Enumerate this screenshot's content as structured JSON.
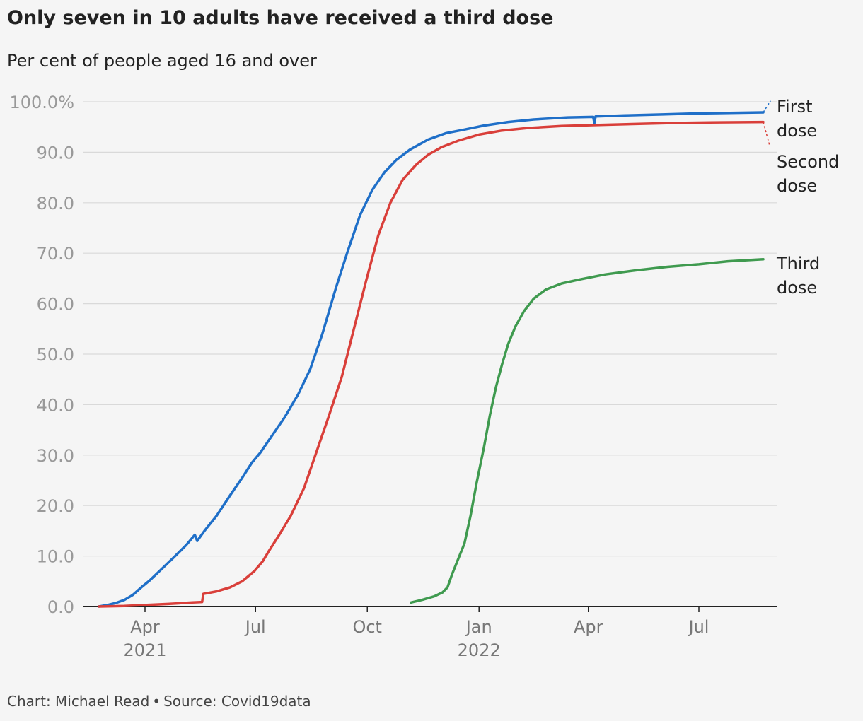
{
  "header": {
    "title": "Only seven in 10 adults have received a third dose",
    "subtitle": "Per cent of people aged 16 and over"
  },
  "footer": {
    "credit": "Chart: Michael Read",
    "separator": "•",
    "source": "Source: Covid19data"
  },
  "chart_data": {
    "type": "line",
    "title": "Only seven in 10 adults have received a third dose",
    "subtitle": "Per cent of people aged 16 and over",
    "xlabel": "",
    "ylabel": "",
    "ylim": [
      0,
      100
    ],
    "yticks": [
      {
        "value": 0,
        "label": "0.0"
      },
      {
        "value": 10,
        "label": "10.0"
      },
      {
        "value": 20,
        "label": "20.0"
      },
      {
        "value": 30,
        "label": "30.0"
      },
      {
        "value": 40,
        "label": "40.0"
      },
      {
        "value": 50,
        "label": "50.0"
      },
      {
        "value": 60,
        "label": "60.0"
      },
      {
        "value": 70,
        "label": "70.0"
      },
      {
        "value": 80,
        "label": "80.0"
      },
      {
        "value": 90,
        "label": "90.0"
      },
      {
        "value": 100,
        "label": "100.0%"
      }
    ],
    "xlim": [
      "2021-02-22",
      "2022-08-31"
    ],
    "xticks": [
      {
        "date": "2021-04-01",
        "label": "Apr",
        "year": "2021"
      },
      {
        "date": "2021-07-01",
        "label": "Jul",
        "year": ""
      },
      {
        "date": "2021-10-01",
        "label": "Oct",
        "year": ""
      },
      {
        "date": "2022-01-01",
        "label": "Jan",
        "year": "2022"
      },
      {
        "date": "2022-04-01",
        "label": "Apr",
        "year": ""
      },
      {
        "date": "2022-07-01",
        "label": "Jul",
        "year": ""
      }
    ],
    "grid": true,
    "legend": "direct labels at right end of lines",
    "series": [
      {
        "name": "First dose",
        "label_lines": [
          "First",
          "dose"
        ],
        "color": "#1f6fc8",
        "points": [
          [
            "2021-02-22",
            0
          ],
          [
            "2021-03-01",
            0.3
          ],
          [
            "2021-03-08",
            0.7
          ],
          [
            "2021-03-15",
            1.3
          ],
          [
            "2021-03-22",
            2.3
          ],
          [
            "2021-03-29",
            3.8
          ],
          [
            "2021-04-05",
            5.2
          ],
          [
            "2021-04-15",
            7.5
          ],
          [
            "2021-04-25",
            9.8
          ],
          [
            "2021-05-05",
            12.2
          ],
          [
            "2021-05-12",
            14.2
          ],
          [
            "2021-05-14",
            13.0
          ],
          [
            "2021-05-20",
            15.0
          ],
          [
            "2021-05-30",
            18.0
          ],
          [
            "2021-06-10",
            22.0
          ],
          [
            "2021-06-20",
            25.5
          ],
          [
            "2021-06-28",
            28.5
          ],
          [
            "2021-07-05",
            30.5
          ],
          [
            "2021-07-15",
            34.0
          ],
          [
            "2021-07-25",
            37.5
          ],
          [
            "2021-08-05",
            42.0
          ],
          [
            "2021-08-15",
            47.0
          ],
          [
            "2021-08-25",
            54.0
          ],
          [
            "2021-09-05",
            63.0
          ],
          [
            "2021-09-15",
            70.5
          ],
          [
            "2021-09-25",
            77.5
          ],
          [
            "2021-10-05",
            82.5
          ],
          [
            "2021-10-15",
            86.0
          ],
          [
            "2021-10-25",
            88.5
          ],
          [
            "2021-11-05",
            90.5
          ],
          [
            "2021-11-20",
            92.5
          ],
          [
            "2021-12-05",
            93.8
          ],
          [
            "2021-12-20",
            94.5
          ],
          [
            "2022-01-05",
            95.3
          ],
          [
            "2022-01-25",
            96.0
          ],
          [
            "2022-02-15",
            96.5
          ],
          [
            "2022-03-15",
            96.9
          ],
          [
            "2022-04-05",
            97.0
          ],
          [
            "2022-04-06",
            95.8
          ],
          [
            "2022-04-07",
            97.1
          ],
          [
            "2022-05-01",
            97.3
          ],
          [
            "2022-06-01",
            97.5
          ],
          [
            "2022-07-01",
            97.7
          ],
          [
            "2022-08-23",
            97.9
          ]
        ],
        "projection": [
          [
            "2022-08-23",
            97.9
          ],
          [
            "2022-08-29",
            100.2
          ]
        ]
      },
      {
        "name": "Second dose",
        "label_lines": [
          "Second",
          "dose"
        ],
        "color": "#d93f3a",
        "points": [
          [
            "2021-02-22",
            0
          ],
          [
            "2021-03-15",
            0.1
          ],
          [
            "2021-04-01",
            0.3
          ],
          [
            "2021-04-20",
            0.5
          ],
          [
            "2021-05-10",
            0.8
          ],
          [
            "2021-05-18",
            0.9
          ],
          [
            "2021-05-19",
            2.5
          ],
          [
            "2021-05-30",
            3.0
          ],
          [
            "2021-06-10",
            3.8
          ],
          [
            "2021-06-20",
            5.0
          ],
          [
            "2021-06-30",
            7.0
          ],
          [
            "2021-07-07",
            9.0
          ],
          [
            "2021-07-12",
            11.0
          ],
          [
            "2021-07-20",
            14.0
          ],
          [
            "2021-07-30",
            18.0
          ],
          [
            "2021-08-10",
            23.5
          ],
          [
            "2021-08-20",
            30.5
          ],
          [
            "2021-08-30",
            37.5
          ],
          [
            "2021-09-10",
            45.5
          ],
          [
            "2021-09-20",
            55.0
          ],
          [
            "2021-09-30",
            64.5
          ],
          [
            "2021-10-10",
            73.5
          ],
          [
            "2021-10-20",
            80.0
          ],
          [
            "2021-10-30",
            84.5
          ],
          [
            "2021-11-10",
            87.5
          ],
          [
            "2021-11-20",
            89.5
          ],
          [
            "2021-12-01",
            91.0
          ],
          [
            "2021-12-15",
            92.3
          ],
          [
            "2022-01-01",
            93.5
          ],
          [
            "2022-01-20",
            94.3
          ],
          [
            "2022-02-10",
            94.8
          ],
          [
            "2022-03-10",
            95.2
          ],
          [
            "2022-04-10",
            95.4
          ],
          [
            "2022-05-10",
            95.6
          ],
          [
            "2022-06-10",
            95.8
          ],
          [
            "2022-07-10",
            95.9
          ],
          [
            "2022-08-23",
            96.0
          ]
        ],
        "projection": [
          [
            "2022-08-23",
            96.0
          ],
          [
            "2022-08-28",
            91.5
          ]
        ]
      },
      {
        "name": "Third dose",
        "label_lines": [
          "Third",
          "dose"
        ],
        "color": "#3f9a4f",
        "points": [
          [
            "2021-11-06",
            0.8
          ],
          [
            "2021-11-15",
            1.3
          ],
          [
            "2021-11-25",
            2.0
          ],
          [
            "2021-12-02",
            2.8
          ],
          [
            "2021-12-06",
            3.8
          ],
          [
            "2021-12-10",
            6.5
          ],
          [
            "2021-12-15",
            9.5
          ],
          [
            "2021-12-20",
            12.5
          ],
          [
            "2021-12-25",
            18.0
          ],
          [
            "2021-12-30",
            24.5
          ],
          [
            "2022-01-05",
            31.5
          ],
          [
            "2022-01-10",
            38.0
          ],
          [
            "2022-01-15",
            43.5
          ],
          [
            "2022-01-20",
            48.0
          ],
          [
            "2022-01-25",
            52.0
          ],
          [
            "2022-01-31",
            55.5
          ],
          [
            "2022-02-07",
            58.5
          ],
          [
            "2022-02-15",
            61.0
          ],
          [
            "2022-02-25",
            62.8
          ],
          [
            "2022-03-10",
            64.0
          ],
          [
            "2022-03-25",
            64.8
          ],
          [
            "2022-04-15",
            65.8
          ],
          [
            "2022-05-10",
            66.6
          ],
          [
            "2022-06-05",
            67.3
          ],
          [
            "2022-07-01",
            67.8
          ],
          [
            "2022-07-25",
            68.4
          ],
          [
            "2022-08-23",
            68.8
          ]
        ]
      }
    ]
  }
}
